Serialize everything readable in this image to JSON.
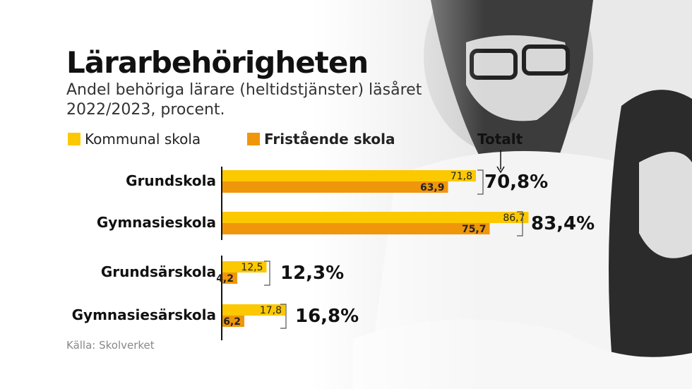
{
  "header": {
    "title": "Lärarbehörigheten",
    "subtitle": "Andel behöriga lärare (heltidstjänster) läsåret 2022/2023, procent."
  },
  "legend": {
    "kommunal": "Kommunal skola",
    "fristaende": "Fristående skola",
    "totalt": "Totalt"
  },
  "source": "Källa: Skolverket",
  "colors": {
    "kommunal": "#fcc800",
    "fristaende": "#f0960a",
    "text": "#111111"
  },
  "chart_data": {
    "type": "bar",
    "orientation": "horizontal",
    "categories": [
      "Grundskola",
      "Gymnasieskola",
      "Grundsärskola",
      "Gymnasiesärskola"
    ],
    "series": [
      {
        "name": "Kommunal skola",
        "values": [
          71.8,
          86.7,
          12.5,
          17.8
        ],
        "labels": [
          "71,8",
          "86,7",
          "12,5",
          "17,8"
        ]
      },
      {
        "name": "Fristående skola",
        "values": [
          63.9,
          75.7,
          4.2,
          6.2
        ],
        "labels": [
          "63,9",
          "75,7",
          "4,2",
          "6,2"
        ]
      }
    ],
    "totals": [
      70.8,
      83.4,
      12.3,
      16.8
    ],
    "total_labels": [
      "70,8%",
      "83,4%",
      "12,3%",
      "16,8%"
    ],
    "xlim": [
      0,
      100
    ],
    "legend_position": "top-left"
  }
}
